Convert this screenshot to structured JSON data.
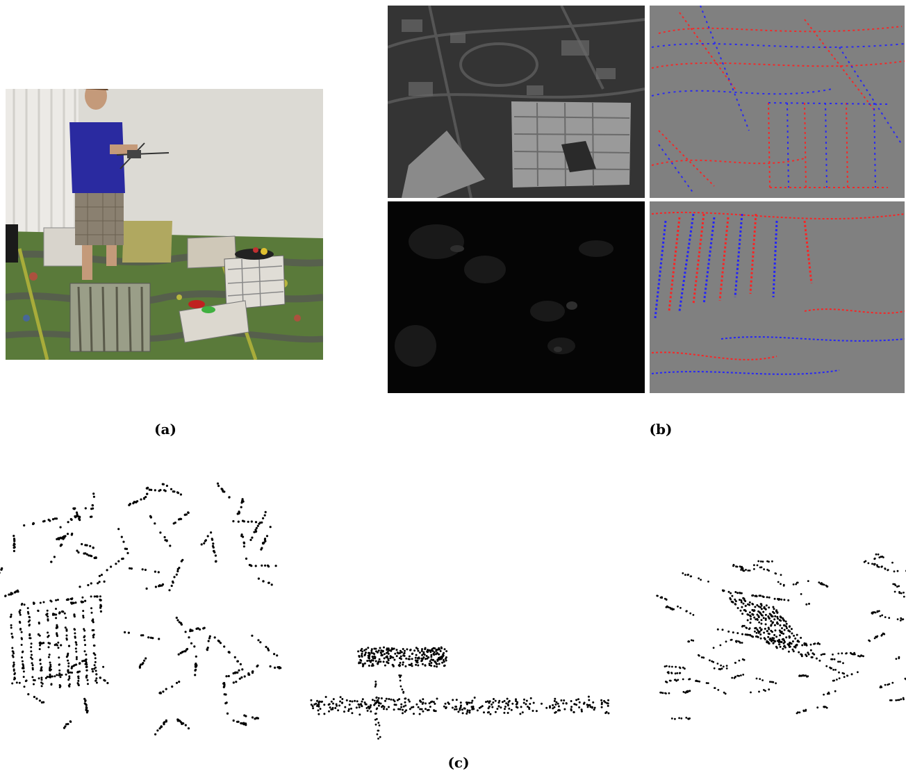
{
  "figure": {
    "captions": {
      "a": "(a)",
      "b": "(b)",
      "c": "(c)"
    },
    "panels": {
      "a": {
        "description_tag": "photo-drone-lab-scene",
        "colors": {
          "wall": "#dcdad4",
          "curtain": "#e8e6e2",
          "carpet": "#5a7a3a",
          "shirt": "#2a2aa0",
          "shorts": "#8a8070"
        }
      },
      "b": {
        "tiles": [
          {
            "kind": "grayscale-intensity"
          },
          {
            "kind": "event-polarity"
          },
          {
            "kind": "dark-intensity"
          },
          {
            "kind": "event-polarity"
          }
        ],
        "colors": {
          "event_background": "#808080",
          "positive_event": "#ff2020",
          "negative_event": "#2020ff",
          "tile_separator": "#ffffff",
          "dark_tile": "#050505"
        }
      },
      "c": {
        "views": [
          {
            "kind": "point-cloud-top-view"
          },
          {
            "kind": "point-cloud-side-view"
          },
          {
            "kind": "point-cloud-oblique-view"
          }
        ],
        "colors": {
          "points": "#000000",
          "background": "#ffffff"
        }
      }
    }
  }
}
